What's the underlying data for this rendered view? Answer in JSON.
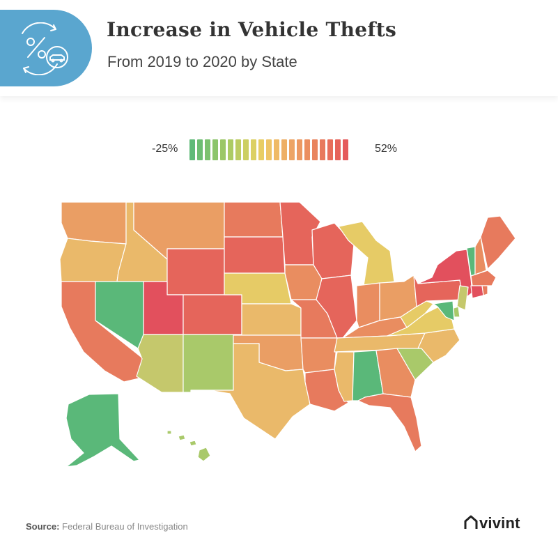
{
  "header": {
    "title": "Increase in Vehicle Thefts",
    "subtitle": "From 2019 to 2020 by State",
    "icon": "percent-car-cycle-icon"
  },
  "legend": {
    "min_label": "-25%",
    "max_label": "52%",
    "colors": [
      "#5fba78",
      "#6dbd73",
      "#7cc16f",
      "#8cc56b",
      "#9cc767",
      "#accb64",
      "#bccc62",
      "#cccf62",
      "#dcd063",
      "#e8cd64",
      "#eec466",
      "#efba66",
      "#eeaf66",
      "#eda465",
      "#ec9963",
      "#eb8e60",
      "#e9845e",
      "#e8795c",
      "#e76e5b",
      "#e6645b",
      "#e55a5c"
    ]
  },
  "colors": {
    "c_green": "#5ab879",
    "c_lgreen": "#a9c96a",
    "c_ygreen": "#c5c86c",
    "c_yellow": "#e6cb66",
    "c_lorange": "#eab96a",
    "c_orange": "#ea9e64",
    "c_orange2": "#e98d60",
    "c_coral": "#e77a5d",
    "c_red": "#e5655b",
    "c_crimson": "#e2505d"
  },
  "source": {
    "label": "Source:",
    "text": " Federal Bureau of Investigation"
  },
  "brand": {
    "name": "vivint",
    "logo_icon": "house-icon"
  }
}
